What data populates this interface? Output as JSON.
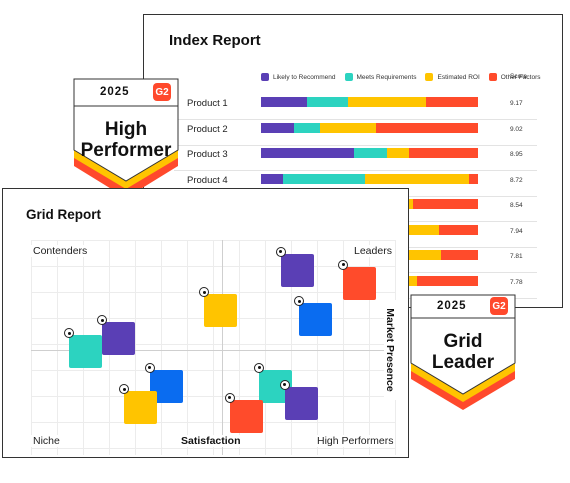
{
  "index_report": {
    "title": "Index Report",
    "score_header": "Score",
    "legend": [
      {
        "label": "Likely to Recommend",
        "color": "#5a3fb5"
      },
      {
        "label": "Meets Requirements",
        "color": "#2cd3c0"
      },
      {
        "label": "Estimated ROI",
        "color": "#ffc400"
      },
      {
        "label": "Other Factors",
        "color": "#ff4b2b"
      }
    ],
    "rows": [
      {
        "label": "Product 1",
        "score": "9.17",
        "segments": [
          0.21,
          0.19,
          0.36,
          0.24
        ]
      },
      {
        "label": "Product 2",
        "score": "9.02",
        "segments": [
          0.15,
          0.12,
          0.26,
          0.47
        ]
      },
      {
        "label": "Product 3",
        "score": "8.95",
        "segments": [
          0.43,
          0.15,
          0.1,
          0.32
        ]
      },
      {
        "label": "Product 4",
        "score": "8.72",
        "segments": [
          0.1,
          0.38,
          0.48,
          0.04
        ]
      },
      {
        "label": "",
        "score": "8.54",
        "segments": [
          0.35,
          0.2,
          0.15,
          0.3
        ]
      },
      {
        "label": "",
        "score": "7.94",
        "segments": [
          0.35,
          0.2,
          0.27,
          0.18
        ]
      },
      {
        "label": "",
        "score": "7.81",
        "segments": [
          0.3,
          0.25,
          0.28,
          0.17
        ]
      },
      {
        "label": "",
        "score": "7.78",
        "segments": [
          0.3,
          0.25,
          0.17,
          0.28
        ]
      }
    ]
  },
  "grid_report": {
    "title": "Grid Report",
    "quadrants": {
      "top_left": "Contenders",
      "top_right": "Leaders",
      "bottom_left": "Niche",
      "bottom_right": "High Performers"
    },
    "x_axis_label": "Satisfaction",
    "y_axis_label": "Market Presence",
    "products": [
      {
        "color": "#5a3fb5",
        "satisfaction": 0.73,
        "presence": 0.86
      },
      {
        "color": "#ff4b2b",
        "satisfaction": 0.9,
        "presence": 0.8
      },
      {
        "color": "#ffc400",
        "satisfaction": 0.52,
        "presence": 0.67
      },
      {
        "color": "#0a6cf0",
        "satisfaction": 0.78,
        "presence": 0.63
      },
      {
        "color": "#5a3fb5",
        "satisfaction": 0.24,
        "presence": 0.54
      },
      {
        "color": "#2cd3c0",
        "satisfaction": 0.15,
        "presence": 0.48
      },
      {
        "color": "#0a6cf0",
        "satisfaction": 0.37,
        "presence": 0.32
      },
      {
        "color": "#ffc400",
        "satisfaction": 0.3,
        "presence": 0.22
      },
      {
        "color": "#2cd3c0",
        "satisfaction": 0.67,
        "presence": 0.32
      },
      {
        "color": "#5a3fb5",
        "satisfaction": 0.74,
        "presence": 0.24
      },
      {
        "color": "#ff4b2b",
        "satisfaction": 0.59,
        "presence": 0.18
      }
    ]
  },
  "badges": {
    "high_performer": {
      "year": "2025",
      "line1": "High",
      "line2": "Performer",
      "logo": "G2"
    },
    "grid_leader": {
      "year": "2025",
      "line1": "Grid",
      "line2": "Leader",
      "logo": "G2"
    },
    "stripe_colors": [
      "#ff492c",
      "#ffc400"
    ]
  }
}
